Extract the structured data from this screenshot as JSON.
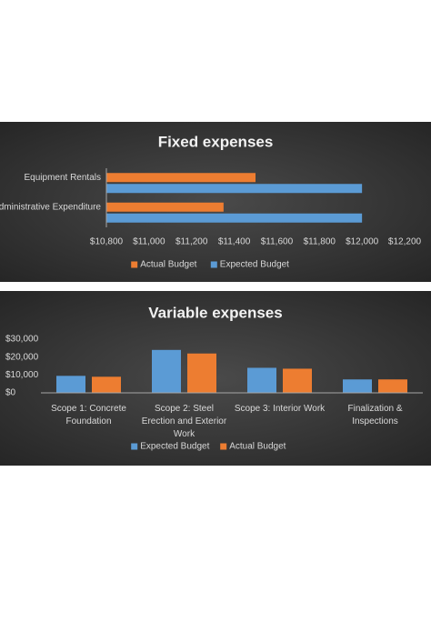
{
  "chart_data": [
    {
      "type": "hbar",
      "title": "Fixed expenses",
      "categories": [
        "Equipment Rentals",
        "Administrative Expenditure"
      ],
      "series": [
        {
          "name": "Actual Budget",
          "color": "#ed7d31",
          "values": [
            11500,
            11350
          ]
        },
        {
          "name": "Expected Budget",
          "color": "#5b9bd5",
          "values": [
            12000,
            12000
          ]
        }
      ],
      "xlim": [
        10800,
        12200
      ],
      "xticks": [
        {
          "value": 10800,
          "label": "$10,800"
        },
        {
          "value": 11000,
          "label": "$11,000"
        },
        {
          "value": 11200,
          "label": "$11,200"
        },
        {
          "value": 11400,
          "label": "$11,400"
        },
        {
          "value": 11600,
          "label": "$11,600"
        },
        {
          "value": 11800,
          "label": "$11,800"
        },
        {
          "value": 12000,
          "label": "$12,000"
        },
        {
          "value": 12200,
          "label": "$12,200"
        }
      ],
      "legend": "bottom"
    },
    {
      "type": "bar",
      "title": "Variable expenses",
      "categories": [
        "Scope 1: Concrete Foundation",
        "Scope 2: Steel Erection and Exterior Work",
        "Scope 3: Interior Work",
        "Finalization & Inspections"
      ],
      "series": [
        {
          "name": "Expected Budget",
          "color": "#5b9bd5",
          "values": [
            9500,
            24000,
            14000,
            7500
          ]
        },
        {
          "name": "Actual Budget",
          "color": "#ed7d31",
          "values": [
            9000,
            22000,
            13500,
            7500
          ]
        }
      ],
      "ylim": [
        0,
        30000
      ],
      "yticks": [
        {
          "value": 0,
          "label": "$0"
        },
        {
          "value": 10000,
          "label": "$10,000"
        },
        {
          "value": 20000,
          "label": "$20,000"
        },
        {
          "value": 30000,
          "label": "$30,000"
        }
      ],
      "legend": "bottom"
    }
  ]
}
